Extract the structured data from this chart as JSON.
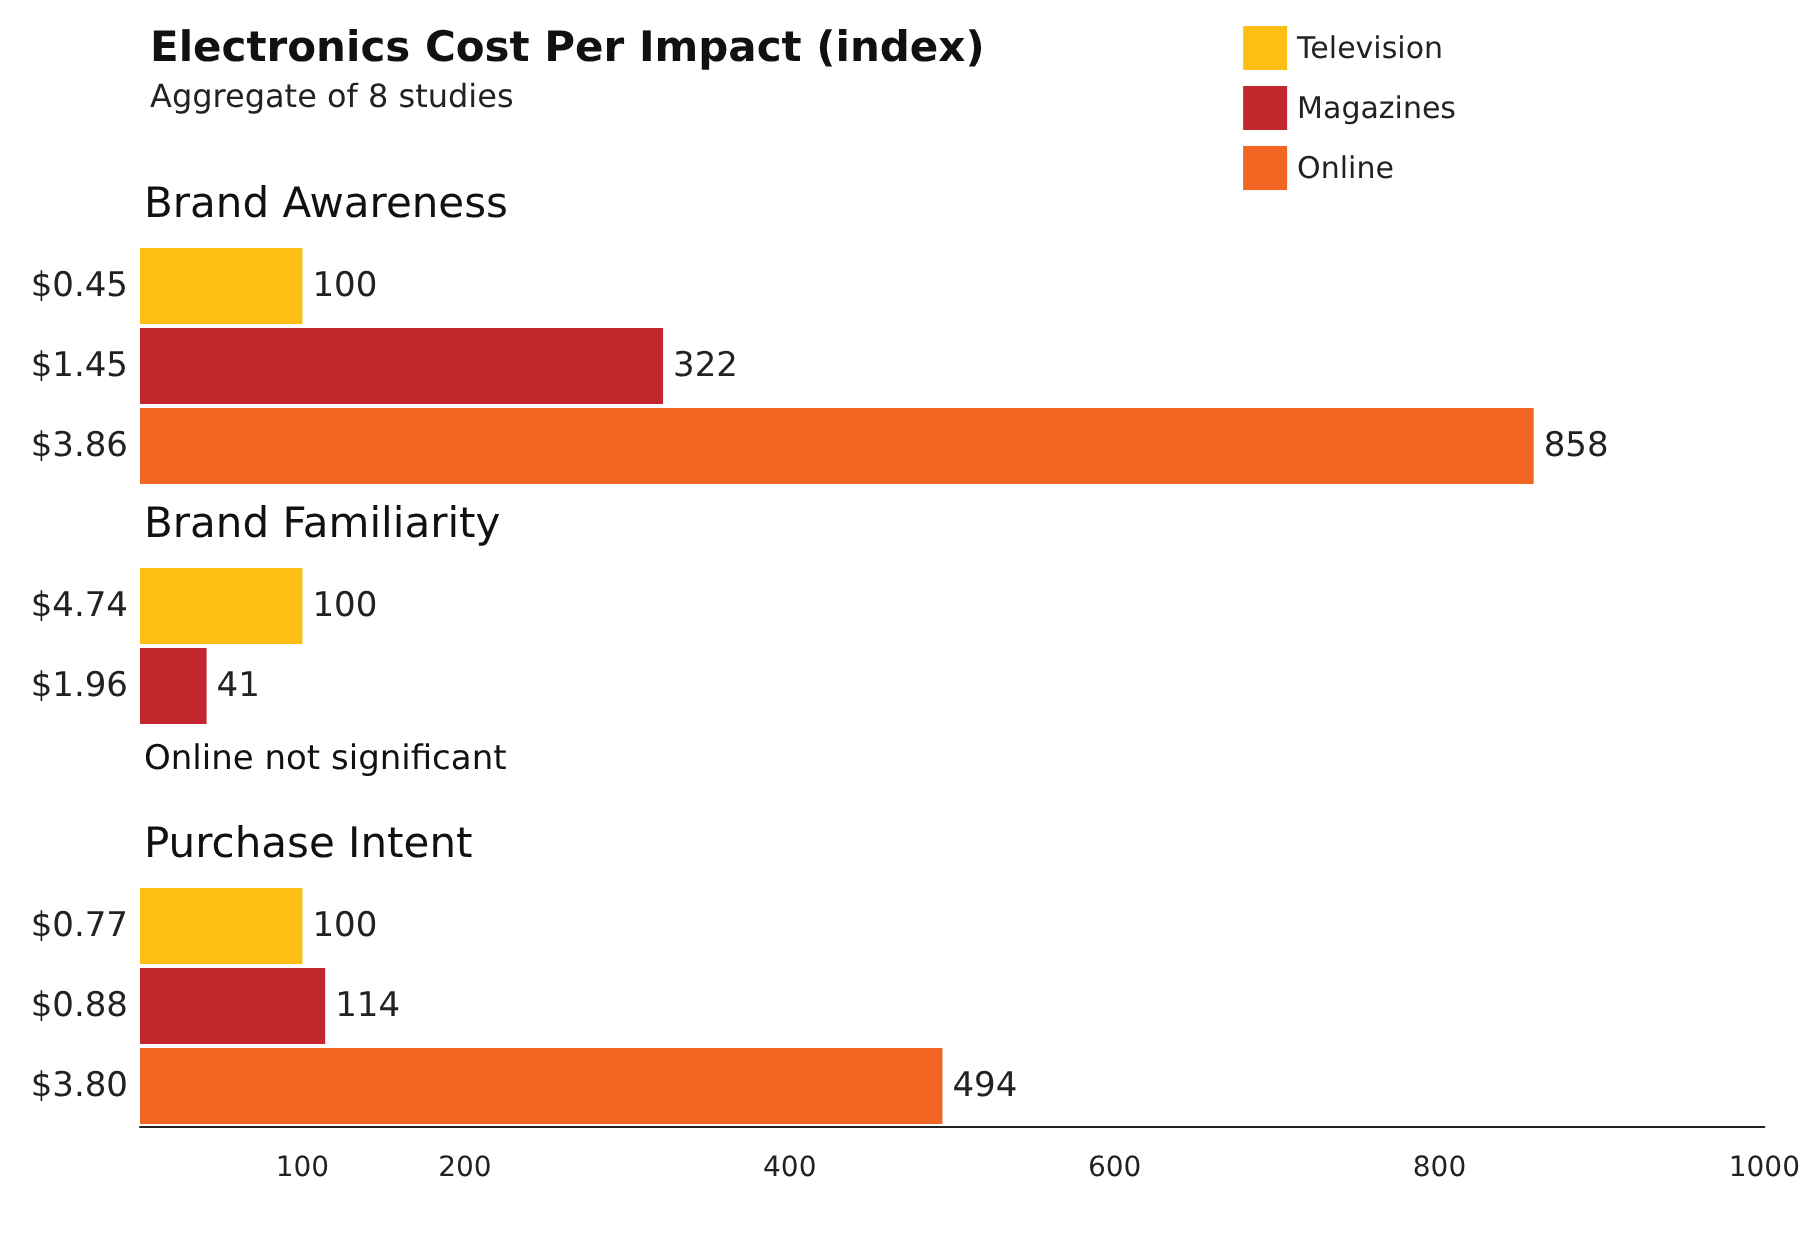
{
  "chart_data": {
    "type": "bar",
    "orientation": "horizontal",
    "title": "Electronics Cost Per Impact (index)",
    "subtitle": "Aggregate of 8 studies",
    "categories": [
      null,
      "$0.45",
      "$1.45",
      "$3.86",
      null,
      "$4.74",
      "$1.96",
      null,
      null,
      "$0.77",
      "$0.88",
      "$3.80"
    ],
    "series": [
      {
        "name": "Television",
        "color": "#fdbf12",
        "values": [
          null,
          100,
          null,
          null,
          null,
          100,
          null,
          null,
          null,
          100,
          null,
          null
        ]
      },
      {
        "name": "Magazines",
        "color": "#c1272d",
        "values": [
          null,
          null,
          322,
          null,
          null,
          null,
          41,
          null,
          null,
          null,
          114,
          null
        ]
      },
      {
        "name": "Online",
        "color": "#f26522",
        "values": [
          null,
          null,
          null,
          858,
          null,
          null,
          null,
          null,
          null,
          null,
          null,
          494
        ]
      }
    ],
    "annotations": [
      "Brand Awareness",
      "Brand Familiarity",
      "Online not significant",
      "Purchase Intent"
    ],
    "xlim": [
      0,
      1000
    ],
    "xticks": [
      100,
      200,
      400,
      600,
      800,
      1000
    ],
    "data_labels": true,
    "legend": "top right",
    "grid": false
  }
}
